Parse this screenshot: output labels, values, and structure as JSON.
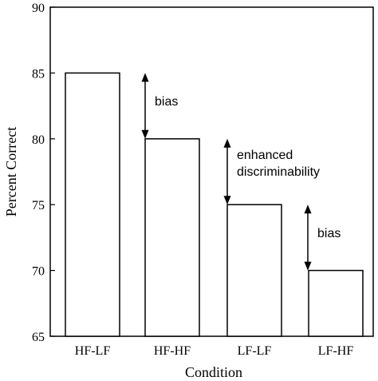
{
  "chart_data": {
    "type": "bar",
    "title": "",
    "xlabel": "Condition",
    "ylabel": "Percent Correct",
    "categories": [
      "HF-LF",
      "HF-HF",
      "LF-LF",
      "LF-HF"
    ],
    "values": [
      85,
      80,
      75,
      70
    ],
    "ylim": [
      65,
      90
    ],
    "yticks": [
      65,
      70,
      75,
      80,
      85,
      90
    ],
    "grid": false,
    "annotations": [
      {
        "label": "bias",
        "from": 85,
        "to": 80,
        "between": [
          "HF-LF",
          "HF-HF"
        ]
      },
      {
        "label_line1": "enhanced",
        "label_line2": "discriminability",
        "from": 80,
        "to": 75,
        "between": [
          "HF-HF",
          "LF-LF"
        ]
      },
      {
        "label": "bias",
        "from": 75,
        "to": 70,
        "between": [
          "LF-LF",
          "LF-HF"
        ]
      }
    ],
    "colors": {
      "bar_fill": "#ffffff",
      "stroke": "#000000"
    }
  }
}
